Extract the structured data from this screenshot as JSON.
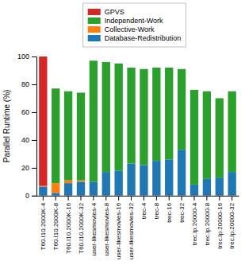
{
  "chart_data": {
    "type": "bar",
    "stacked": true,
    "legend": "top",
    "grid": false,
    "ylabel": "Parallel Runtime (%)",
    "categories": [
      "T60.I10.2000K-4",
      "T60.I10.2000K-8",
      "T60.I10.2000K-16",
      "T60.I10.2000K-32",
      "user-likesmovies-4",
      "user-likesmovies-8",
      "user-likesmovies-16",
      "user-likesmovies-32",
      "trec-4",
      "trec-8",
      "trec-16",
      "trec-32",
      "trec.lp.20000-4",
      "trec.lp.20000-8",
      "trec.lp.20000-16",
      "trec.lp.20000-32"
    ],
    "series": [
      {
        "name": "Database-Redistribution",
        "values": [
          6.5,
          2,
          9,
          10,
          10,
          17,
          18,
          23,
          22,
          25,
          26,
          33,
          8,
          12,
          13,
          17
        ]
      },
      {
        "name": "Collective-Work",
        "values": [
          0.5,
          7,
          2,
          1,
          0,
          0,
          0,
          0,
          0,
          0,
          0,
          0,
          0,
          0,
          0,
          0
        ]
      },
      {
        "name": "Independent-Work",
        "values": [
          0,
          68,
          64,
          63,
          87,
          79,
          77,
          69,
          69,
          67,
          66,
          58,
          68,
          63,
          57,
          58
        ]
      },
      {
        "name": "GPVS",
        "values": [
          93,
          0,
          0,
          0,
          0,
          0,
          0,
          0,
          0,
          0,
          0,
          0,
          0,
          0,
          0,
          0
        ]
      }
    ],
    "ylim": [
      0,
      100
    ],
    "yticks": [
      0,
      20,
      40,
      60,
      80,
      100
    ]
  }
}
